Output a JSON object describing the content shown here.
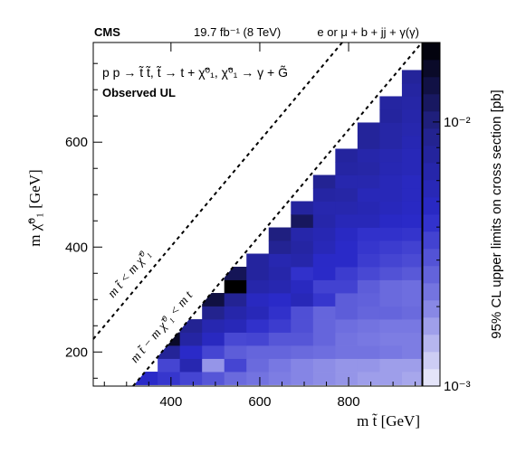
{
  "header": {
    "experiment": "CMS",
    "lumi": "19.7 fb⁻¹ (8 TeV)",
    "channel": "e or μ + b + jj + γ(γ)"
  },
  "annotations": {
    "process": "p p → t̃ t̃,  t̃ → t + χ̃⁰₁,  χ̃⁰₁ → γ + G̃",
    "result": "Observed UL",
    "diag_upper": "m t̃ < m χ̃⁰₁",
    "diag_lower": "m t̃ − m χ̃⁰₁ < m t"
  },
  "colors": {
    "scale": [
      "#f0f0fb",
      "#7c7ce3",
      "#2a2ac9",
      "#22228a",
      "#000000"
    ],
    "frame": "#000000"
  },
  "chart_data": {
    "type": "heatmap",
    "title": "",
    "xlabel": "m t̃ [GeV]",
    "ylabel": "m χ̃⁰₁ [GeV]",
    "zlabel": "95% CL upper limits on cross section [pb]",
    "xlim": [
      225,
      965
    ],
    "ylim": [
      135,
      790
    ],
    "zlim": [
      0.001,
      0.02
    ],
    "zscale": "log",
    "xticks": [
      400,
      600,
      800
    ],
    "yticks": [
      200,
      400,
      600
    ],
    "zticks": [
      "10⁻³",
      "10⁻²"
    ],
    "cell_width": 50,
    "cell_height": 25,
    "cells": [
      [
        345,
        150,
        0.0045
      ],
      [
        395,
        150,
        0.004
      ],
      [
        445,
        150,
        0.0035
      ],
      [
        495,
        150,
        0.003
      ],
      [
        545,
        150,
        0.0025
      ],
      [
        595,
        150,
        0.0023
      ],
      [
        645,
        150,
        0.0021
      ],
      [
        695,
        150,
        0.002
      ],
      [
        745,
        150,
        0.0019
      ],
      [
        795,
        150,
        0.0018
      ],
      [
        845,
        150,
        0.0017
      ],
      [
        895,
        150,
        0.0017
      ],
      [
        945,
        150,
        0.0016
      ],
      [
        395,
        175,
        0.0035
      ],
      [
        445,
        175,
        0.006
      ],
      [
        495,
        175,
        0.0018
      ],
      [
        545,
        175,
        0.0035
      ],
      [
        595,
        175,
        0.0025
      ],
      [
        645,
        175,
        0.0022
      ],
      [
        695,
        175,
        0.002
      ],
      [
        745,
        175,
        0.0019
      ],
      [
        795,
        175,
        0.0018
      ],
      [
        845,
        175,
        0.0018
      ],
      [
        895,
        175,
        0.0017
      ],
      [
        945,
        175,
        0.0017
      ],
      [
        395,
        200,
        0.008
      ],
      [
        445,
        200,
        0.0045
      ],
      [
        495,
        200,
        0.0035
      ],
      [
        545,
        200,
        0.0028
      ],
      [
        595,
        200,
        0.0026
      ],
      [
        645,
        200,
        0.0026
      ],
      [
        695,
        200,
        0.0025
      ],
      [
        745,
        200,
        0.0024
      ],
      [
        795,
        200,
        0.0023
      ],
      [
        845,
        200,
        0.0023
      ],
      [
        895,
        200,
        0.0022
      ],
      [
        945,
        200,
        0.0021
      ],
      [
        395,
        225,
        0.016
      ],
      [
        445,
        225,
        0.007
      ],
      [
        495,
        225,
        0.005
      ],
      [
        545,
        225,
        0.0034
      ],
      [
        595,
        225,
        0.0035
      ],
      [
        645,
        225,
        0.003
      ],
      [
        695,
        225,
        0.003
      ],
      [
        745,
        225,
        0.0026
      ],
      [
        795,
        225,
        0.0023
      ],
      [
        845,
        225,
        0.0022
      ],
      [
        895,
        225,
        0.0021
      ],
      [
        945,
        225,
        0.0021
      ],
      [
        445,
        250,
        0.0085
      ],
      [
        495,
        250,
        0.006
      ],
      [
        545,
        250,
        0.0055
      ],
      [
        595,
        250,
        0.0042
      ],
      [
        645,
        250,
        0.0038
      ],
      [
        695,
        250,
        0.0032
      ],
      [
        745,
        250,
        0.0026
      ],
      [
        795,
        250,
        0.0024
      ],
      [
        845,
        250,
        0.0023
      ],
      [
        895,
        250,
        0.0022
      ],
      [
        945,
        250,
        0.0022
      ],
      [
        495,
        275,
        0.009
      ],
      [
        545,
        275,
        0.0065
      ],
      [
        595,
        275,
        0.0055
      ],
      [
        645,
        275,
        0.0042
      ],
      [
        695,
        275,
        0.0032
      ],
      [
        745,
        275,
        0.0026
      ],
      [
        795,
        275,
        0.0028
      ],
      [
        845,
        275,
        0.0026
      ],
      [
        895,
        275,
        0.0026
      ],
      [
        945,
        275,
        0.0025
      ],
      [
        495,
        300,
        0.014
      ],
      [
        545,
        300,
        0.0085
      ],
      [
        595,
        300,
        0.005
      ],
      [
        645,
        300,
        0.0045
      ],
      [
        695,
        300,
        0.0055
      ],
      [
        745,
        300,
        0.004
      ],
      [
        795,
        300,
        0.0028
      ],
      [
        845,
        300,
        0.0027
      ],
      [
        895,
        300,
        0.0025
      ],
      [
        945,
        300,
        0.0024
      ],
      [
        545,
        325,
        0.02
      ],
      [
        595,
        325,
        0.0065
      ],
      [
        645,
        325,
        0.006
      ],
      [
        695,
        325,
        0.005
      ],
      [
        745,
        325,
        0.0036
      ],
      [
        795,
        325,
        0.0036
      ],
      [
        845,
        325,
        0.0028
      ],
      [
        895,
        325,
        0.0025
      ],
      [
        945,
        325,
        0.0024
      ],
      [
        545,
        350,
        0.0125
      ],
      [
        595,
        350,
        0.0075
      ],
      [
        645,
        350,
        0.0065
      ],
      [
        695,
        350,
        0.0042
      ],
      [
        745,
        350,
        0.0045
      ],
      [
        795,
        350,
        0.0038
      ],
      [
        845,
        350,
        0.0034
      ],
      [
        895,
        350,
        0.0031
      ],
      [
        945,
        350,
        0.0029
      ],
      [
        595,
        375,
        0.0075
      ],
      [
        645,
        375,
        0.006
      ],
      [
        695,
        375,
        0.0065
      ],
      [
        745,
        375,
        0.0046
      ],
      [
        795,
        375,
        0.0045
      ],
      [
        845,
        375,
        0.0038
      ],
      [
        895,
        375,
        0.0035
      ],
      [
        945,
        375,
        0.0033
      ],
      [
        645,
        400,
        0.0085
      ],
      [
        695,
        400,
        0.007
      ],
      [
        745,
        400,
        0.0055
      ],
      [
        795,
        400,
        0.0045
      ],
      [
        845,
        400,
        0.004
      ],
      [
        895,
        400,
        0.0038
      ],
      [
        945,
        400,
        0.0036
      ],
      [
        645,
        425,
        0.01
      ],
      [
        695,
        425,
        0.0065
      ],
      [
        745,
        425,
        0.0058
      ],
      [
        795,
        425,
        0.0048
      ],
      [
        845,
        425,
        0.0042
      ],
      [
        895,
        425,
        0.0042
      ],
      [
        945,
        425,
        0.0041
      ],
      [
        695,
        450,
        0.012
      ],
      [
        745,
        450,
        0.0065
      ],
      [
        795,
        450,
        0.0055
      ],
      [
        845,
        450,
        0.0055
      ],
      [
        895,
        450,
        0.0047
      ],
      [
        945,
        450,
        0.0045
      ],
      [
        695,
        475,
        0.0075
      ],
      [
        745,
        475,
        0.0062
      ],
      [
        795,
        475,
        0.0062
      ],
      [
        845,
        475,
        0.0058
      ],
      [
        895,
        475,
        0.0052
      ],
      [
        945,
        475,
        0.0048
      ],
      [
        745,
        500,
        0.007
      ],
      [
        795,
        500,
        0.0068
      ],
      [
        845,
        500,
        0.0055
      ],
      [
        895,
        500,
        0.0055
      ],
      [
        945,
        500,
        0.005
      ],
      [
        745,
        525,
        0.0085
      ],
      [
        795,
        525,
        0.0062
      ],
      [
        845,
        525,
        0.0062
      ],
      [
        895,
        525,
        0.0055
      ],
      [
        945,
        525,
        0.005
      ],
      [
        795,
        550,
        0.007
      ],
      [
        845,
        550,
        0.0068
      ],
      [
        895,
        550,
        0.0058
      ],
      [
        945,
        550,
        0.0055
      ],
      [
        795,
        575,
        0.0075
      ],
      [
        845,
        575,
        0.0065
      ],
      [
        895,
        575,
        0.006
      ],
      [
        945,
        575,
        0.0055
      ],
      [
        845,
        600,
        0.0078
      ],
      [
        895,
        600,
        0.0068
      ],
      [
        945,
        600,
        0.0058
      ],
      [
        845,
        625,
        0.0078
      ],
      [
        895,
        625,
        0.0068
      ],
      [
        945,
        625,
        0.0062
      ],
      [
        895,
        650,
        0.0075
      ],
      [
        945,
        650,
        0.0065
      ],
      [
        895,
        675,
        0.0072
      ],
      [
        945,
        675,
        0.0068
      ],
      [
        945,
        700,
        0.0072
      ],
      [
        945,
        725,
        0.0078
      ]
    ]
  }
}
